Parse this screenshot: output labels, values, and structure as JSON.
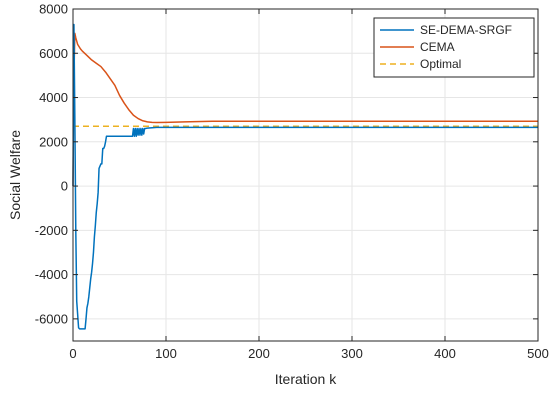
{
  "chart_data": {
    "type": "line",
    "xlabel": "Iteration k",
    "ylabel": "Social Welfare",
    "xlim": [
      0,
      500
    ],
    "ylim": [
      -7000,
      8000
    ],
    "xticks": [
      0,
      100,
      200,
      300,
      400,
      500
    ],
    "yticks": [
      -6000,
      -4000,
      -2000,
      0,
      2000,
      4000,
      6000,
      8000
    ],
    "grid": true,
    "legend_position": "top-right",
    "series": [
      {
        "name": "SE-DEMA-SRGF",
        "color": "#0072BD",
        "style": "solid",
        "x": [
          0,
          1,
          2,
          3,
          4,
          5,
          6,
          7,
          8,
          10,
          12,
          13,
          14,
          15,
          16,
          17,
          18,
          19,
          20,
          21,
          22,
          23,
          24,
          25,
          26,
          27,
          28,
          29,
          30,
          31,
          32,
          33,
          34,
          35,
          36,
          37,
          38,
          40,
          45,
          50,
          55,
          60,
          64,
          65,
          66,
          67,
          68,
          69,
          70,
          71,
          72,
          73,
          74,
          75,
          76,
          77,
          78,
          80,
          90,
          100,
          150,
          200,
          300,
          400,
          500
        ],
        "y": [
          0,
          7300,
          3000,
          -2000,
          -5200,
          -5800,
          -6400,
          -6450,
          -6450,
          -6450,
          -6450,
          -6450,
          -6000,
          -5500,
          -5300,
          -5000,
          -4600,
          -4200,
          -3900,
          -3500,
          -3000,
          -2300,
          -1800,
          -1200,
          -800,
          -300,
          800,
          900,
          1000,
          1000,
          1700,
          1700,
          1800,
          2000,
          2250,
          2250,
          2250,
          2250,
          2250,
          2250,
          2250,
          2250,
          2250,
          2600,
          2250,
          2600,
          2250,
          2600,
          2300,
          2600,
          2300,
          2600,
          2300,
          2600,
          2350,
          2600,
          2600,
          2620,
          2650,
          2650,
          2650,
          2650,
          2650,
          2650,
          2650
        ]
      },
      {
        "name": "CEMA",
        "color": "#D95319",
        "style": "solid",
        "x": [
          0,
          1,
          2,
          3,
          5,
          8,
          10,
          15,
          20,
          25,
          30,
          35,
          40,
          45,
          50,
          55,
          60,
          65,
          70,
          75,
          80,
          85,
          90,
          100,
          120,
          150,
          200,
          300,
          400,
          500
        ],
        "y": [
          0,
          5000,
          6900,
          6700,
          6400,
          6200,
          6100,
          5900,
          5700,
          5550,
          5400,
          5150,
          4850,
          4550,
          4100,
          3750,
          3450,
          3200,
          3050,
          2950,
          2900,
          2880,
          2870,
          2880,
          2900,
          2930,
          2930,
          2930,
          2930,
          2930
        ]
      },
      {
        "name": "Optimal",
        "color": "#EDB120",
        "style": "dashed",
        "x": [
          0,
          500
        ],
        "y": [
          2700,
          2700
        ]
      }
    ]
  }
}
